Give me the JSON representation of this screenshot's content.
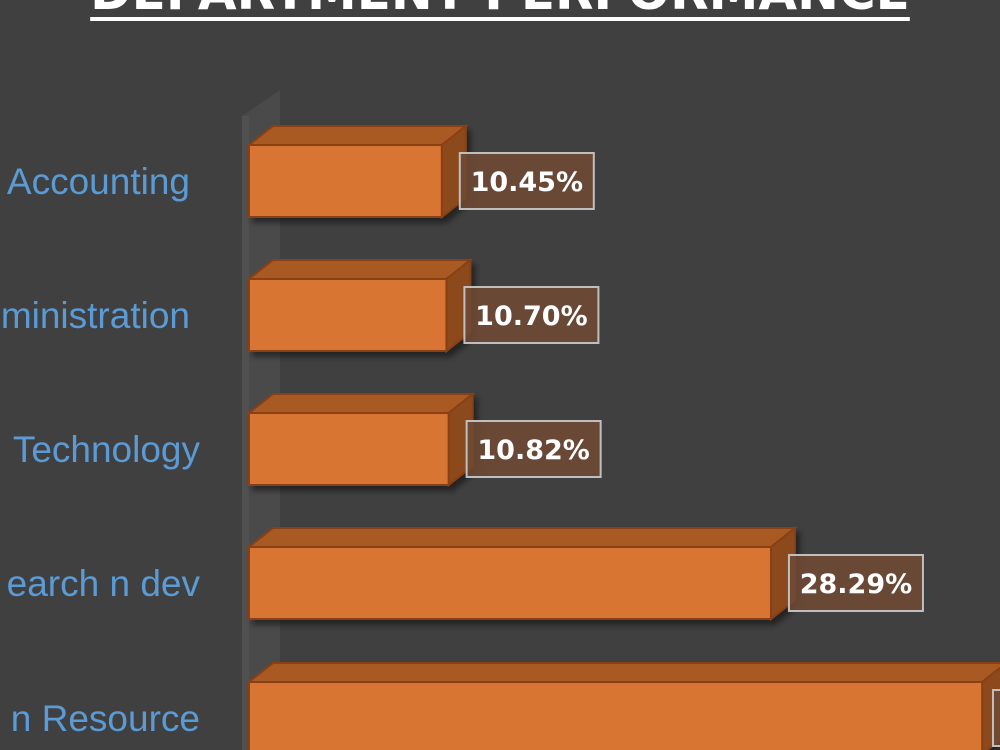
{
  "chart_data": {
    "type": "bar",
    "orientation": "horizontal",
    "title": "DEPARTMENT PERFORMANCE",
    "categories": [
      "Accounting",
      "Administration",
      "Technology",
      "Research n dev",
      "Human Resource"
    ],
    "visible_category_labels": [
      "Accounting",
      "ministration",
      "Technology",
      "earch n dev",
      "n Resource"
    ],
    "values": [
      10.45,
      10.7,
      10.82,
      28.29,
      39.74
    ],
    "data_labels": [
      "10.45%",
      "10.70%",
      "10.82%",
      "28.29%",
      ""
    ],
    "value_unit": "%",
    "xlim": [
      0,
      40
    ],
    "style": "3d",
    "grid": false,
    "legend": "none"
  },
  "colors": {
    "background": "#404040",
    "bar_front": "#D97431",
    "bar_top": "#A85A24",
    "bar_side": "#8C4A1C",
    "bar_edge": "#8A3F12",
    "category_label": "#5B9BD5",
    "data_label_text": "#FFFFFF",
    "data_label_fill": "#6E4A34",
    "data_label_border": "#BFBFBF",
    "title": "#FFFFFF"
  }
}
